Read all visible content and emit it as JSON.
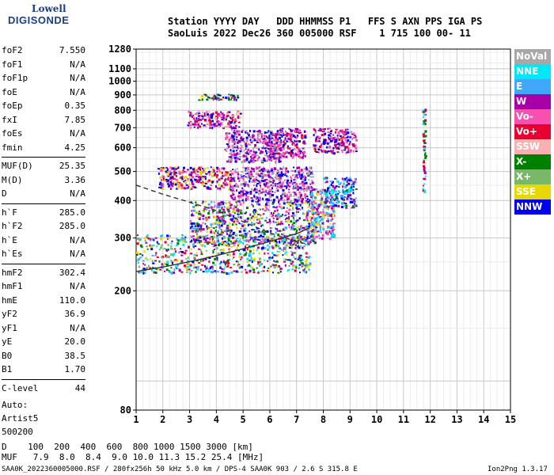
{
  "logo": {
    "line1": "Lowell",
    "line2": "DIGISONDE"
  },
  "header": {
    "line1": "Station YYYY DAY   DDD HHMMSS P1   FFS S AXN PPS IGA PS",
    "line2": "SaoLuis 2022 Dec26 360 005000 RSF    1 715 100 00- 11"
  },
  "params": [
    {
      "label": "foF2",
      "value": "7.550"
    },
    {
      "label": "foF1",
      "value": "N/A"
    },
    {
      "label": "foF1p",
      "value": "N/A"
    },
    {
      "label": "foE",
      "value": "N/A"
    },
    {
      "label": "foEp",
      "value": "0.35"
    },
    {
      "label": "fxI",
      "value": "7.85"
    },
    {
      "label": "foEs",
      "value": "N/A"
    },
    {
      "label": "fmin",
      "value": "4.25"
    },
    {
      "label": "MUF(D)",
      "value": "25.35"
    },
    {
      "label": "M(D)",
      "value": "3.36"
    },
    {
      "label": "D",
      "value": "N/A"
    },
    {
      "label": "h`F",
      "value": "285.0"
    },
    {
      "label": "h`F2",
      "value": "285.0"
    },
    {
      "label": "h`E",
      "value": "N/A"
    },
    {
      "label": "h`Es",
      "value": "N/A"
    },
    {
      "label": "hmF2",
      "value": "302.4"
    },
    {
      "label": "hmF1",
      "value": "N/A"
    },
    {
      "label": "hmE",
      "value": "110.0"
    },
    {
      "label": "yF2",
      "value": "36.9"
    },
    {
      "label": "yF1",
      "value": "N/A"
    },
    {
      "label": "yE",
      "value": "20.0"
    },
    {
      "label": "B0",
      "value": "38.5"
    },
    {
      "label": "B1",
      "value": "1.70"
    },
    {
      "label": "C-level",
      "value": "44"
    }
  ],
  "auto": {
    "line1": "Auto:",
    "line2": "Artist5",
    "line3": "500200"
  },
  "legend": [
    {
      "label": "NoVal",
      "bg": "#a8a8a8",
      "fg": "#ffffff"
    },
    {
      "label": "NNE",
      "bg": "#00e8f8",
      "fg": "#ffffff"
    },
    {
      "label": "E",
      "bg": "#40a8f8",
      "fg": "#ffffff"
    },
    {
      "label": "W",
      "bg": "#a800a8",
      "fg": "#ffffff"
    },
    {
      "label": "Vo-",
      "bg": "#f850b0",
      "fg": "#ffffff"
    },
    {
      "label": "Vo+",
      "bg": "#e80030",
      "fg": "#ffffff"
    },
    {
      "label": "SSW",
      "bg": "#f8b0b0",
      "fg": "#ffffff"
    },
    {
      "label": "X-",
      "bg": "#008000",
      "fg": "#ffffff"
    },
    {
      "label": "X+",
      "bg": "#78b868",
      "fg": "#ffffff"
    },
    {
      "label": "SSE",
      "bg": "#e8d800",
      "fg": "#ffffff"
    },
    {
      "label": "NNW",
      "bg": "#0000f0",
      "fg": "#ffffff"
    }
  ],
  "footer": {
    "d_line": "D    100  200  400  600  800 1000 1500 3000 [km]",
    "muf_line": "MUF   7.9  8.0  8.4  9.0 10.0 11.3 15.2 25.4 [MHz]",
    "file_line": "SAA0K_2022360005000.RSF / 280fx256h 50 kHz 5.0 km / DPS-4 SAA0K 903 / 2.6 S 315.8 E",
    "version": "Ion2Png 1.3.17"
  },
  "chart_data": {
    "type": "scatter",
    "xlim": [
      1,
      15
    ],
    "ylim": [
      80,
      1280
    ],
    "x_ticks": [
      "1",
      "2",
      "3",
      "4",
      "5",
      "6",
      "7",
      "8",
      "9",
      "10",
      "11",
      "12",
      "13",
      "14",
      "15"
    ],
    "y_ticks": [
      "80",
      "200",
      "300",
      "400",
      "500",
      "600",
      "700",
      "800",
      "900",
      "1000",
      "1100",
      "1280"
    ],
    "y_scale": "log",
    "grid": true,
    "colors": {
      "NoVal": "#a8a8a8",
      "NNE": "#00e8f8",
      "E": "#40a8f8",
      "W": "#a800a8",
      "Vo-": "#f850b0",
      "Vo+": "#e80030",
      "SSW": "#f8b0b0",
      "X-": "#008000",
      "X+": "#78b868",
      "SSE": "#e8d800",
      "NNW": "#0000f0"
    },
    "echo_clusters": [
      {
        "x": [
          1.0,
          7.5
        ],
        "y": [
          230,
          310
        ],
        "colors": [
          "NNW",
          "W",
          "X-",
          "SSE",
          "Vo+",
          "NNE",
          "E",
          "X+"
        ]
      },
      {
        "x": [
          3.0,
          7.7
        ],
        "y": [
          290,
          400
        ],
        "colors": [
          "W",
          "NNW",
          "Vo-",
          "X-",
          "SSE",
          "E"
        ]
      },
      {
        "x": [
          1.8,
          4.5
        ],
        "y": [
          440,
          520
        ],
        "colors": [
          "W",
          "Vo+",
          "SSE",
          "NNW",
          "Vo-"
        ]
      },
      {
        "x": [
          4.5,
          7.6
        ],
        "y": [
          400,
          520
        ],
        "colors": [
          "W",
          "NNW",
          "Vo-",
          "NoVal"
        ]
      },
      {
        "x": [
          7.5,
          8.4
        ],
        "y": [
          300,
          440
        ],
        "colors": [
          "NNE",
          "E",
          "Vo-",
          "W",
          "SSE"
        ]
      },
      {
        "x": [
          8.0,
          9.2
        ],
        "y": [
          380,
          480
        ],
        "colors": [
          "W",
          "NNE",
          "E",
          "X-",
          "NNW"
        ]
      },
      {
        "x": [
          5.8,
          7.3
        ],
        "y": [
          560,
          700
        ],
        "colors": [
          "W",
          "Vo-",
          "Vo+",
          "NNW"
        ]
      },
      {
        "x": [
          7.6,
          9.2
        ],
        "y": [
          580,
          700
        ],
        "colors": [
          "W",
          "Vo-",
          "Vo+",
          "NNW"
        ]
      },
      {
        "x": [
          4.3,
          6.5
        ],
        "y": [
          540,
          690
        ],
        "colors": [
          "W",
          "Vo-",
          "NNW",
          "NoVal"
        ]
      },
      {
        "x": [
          2.9,
          4.9
        ],
        "y": [
          700,
          800
        ],
        "colors": [
          "Vo-",
          "W",
          "Vo+",
          "NNW",
          "SSW"
        ]
      },
      {
        "x": [
          3.3,
          4.8
        ],
        "y": [
          870,
          910
        ],
        "colors": [
          "NNW",
          "W",
          "X-",
          "SSE"
        ]
      },
      {
        "x": [
          11.7,
          11.8
        ],
        "y": [
          430,
          810
        ],
        "colors": [
          "W",
          "NNE",
          "X-",
          "Vo+"
        ]
      }
    ],
    "traces": [
      {
        "type": "dashed",
        "x": [
          1.0,
          2.0,
          3.0,
          4.0,
          5.0,
          6.0,
          7.0,
          7.5
        ],
        "y": [
          450,
          420,
          395,
          370,
          340,
          312,
          292,
          285
        ]
      },
      {
        "type": "solid",
        "x": [
          1.0,
          2.0,
          3.0,
          4.0,
          5.0,
          6.0,
          7.0,
          7.5
        ],
        "y": [
          232,
          240,
          250,
          262,
          276,
          292,
          310,
          325
        ]
      }
    ]
  }
}
